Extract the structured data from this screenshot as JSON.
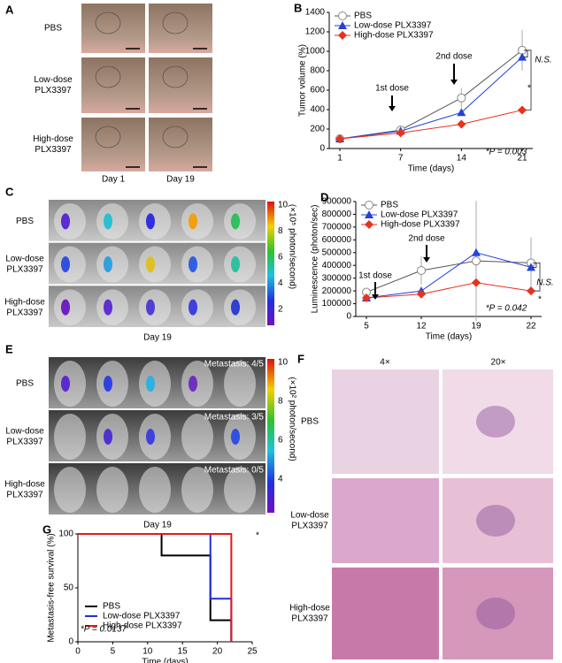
{
  "panels": {
    "A": {
      "label": "A",
      "rows": [
        [
          "PBS"
        ],
        [
          "Low-dose",
          "PLX3397"
        ],
        [
          "High-dose",
          "PLX3397"
        ]
      ],
      "columns": [
        "Day 1",
        "Day 19"
      ]
    },
    "C": {
      "label": "C",
      "rows": [
        [
          "PBS"
        ],
        [
          "Low-dose",
          "PLX3397"
        ],
        [
          "High-dose",
          "PLX3397"
        ]
      ],
      "colorbar_ticks": [
        10,
        8,
        6,
        4,
        2
      ],
      "colorbar_unit": "(×10⁵ photon/second)",
      "caption": "Day 19"
    },
    "E": {
      "label": "E",
      "rows": [
        [
          "PBS"
        ],
        [
          "Low-dose",
          "PLX3397"
        ],
        [
          "High-dose",
          "PLX3397"
        ]
      ],
      "colorbar_ticks": [
        10,
        8,
        6,
        4
      ],
      "colorbar_unit": "(×10² photon/second)",
      "metastasis": [
        "Metastasis: 4/5",
        "Metastasis: 3/5",
        "Metastasis: 0/5"
      ],
      "caption": "Day 19"
    },
    "F": {
      "label": "F",
      "rows": [
        [
          "PBS"
        ],
        [
          "Low-dose",
          "PLX3397"
        ],
        [
          "High-dose",
          "PLX3397"
        ]
      ],
      "columns": [
        "4×",
        "20×"
      ]
    }
  },
  "chart_data": [
    {
      "type": "line",
      "panel_label": "B",
      "ylabel": "Tumor volume (%)",
      "xlabel": "Time (days)",
      "categories": [
        "1",
        "7",
        "14",
        "21"
      ],
      "ylim": [
        0,
        1400
      ],
      "yticks": [
        0,
        200,
        400,
        600,
        800,
        1000,
        1200,
        1400
      ],
      "legend": "upper left",
      "series": [
        {
          "name": "PBS",
          "color": "#555555",
          "marker": "circle",
          "values": [
            100,
            190,
            520,
            1010
          ],
          "errors": [
            10,
            20,
            100,
            210
          ]
        },
        {
          "name": "Low-dose PLX3397",
          "color": "#2442d6",
          "marker": "triangle",
          "values": [
            100,
            180,
            370,
            940
          ]
        },
        {
          "name": "High-dose PLX3397",
          "color": "#e8321e",
          "marker": "diamond",
          "values": [
            100,
            160,
            250,
            395
          ]
        }
      ],
      "annotations": [
        "1st dose",
        "2nd dose",
        "N.S.",
        "*",
        "*P = 0.003"
      ]
    },
    {
      "type": "line",
      "panel_label": "D",
      "ylabel": "Luminescence (photon/sec)",
      "xlabel": "Time (days)",
      "categories": [
        "5",
        "12",
        "19",
        "22"
      ],
      "ylim": [
        0,
        900000
      ],
      "yticks": [
        0,
        100000,
        200000,
        300000,
        400000,
        500000,
        600000,
        700000,
        800000,
        900000
      ],
      "legend": "upper left",
      "series": [
        {
          "name": "PBS",
          "color": "#555555",
          "marker": "circle",
          "values": [
            190000,
            360000,
            435000,
            420000
          ],
          "errors": [
            20000,
            110000,
            470000,
            200000
          ]
        },
        {
          "name": "Low-dose PLX3397",
          "color": "#2442d6",
          "marker": "triangle",
          "values": [
            145000,
            200000,
            500000,
            385000
          ]
        },
        {
          "name": "High-dose PLX3397",
          "color": "#e8321e",
          "marker": "diamond",
          "values": [
            145000,
            175000,
            265000,
            200000
          ]
        }
      ],
      "annotations": [
        "1st dose",
        "2nd dose",
        "N.S.",
        "*",
        "*P = 0.042"
      ]
    },
    {
      "type": "step",
      "panel_label": "G",
      "ylabel": "Metastasis-free survival (%)",
      "xlabel": "Time (days)",
      "xlim": [
        0,
        25
      ],
      "xticks": [
        0,
        5,
        10,
        15,
        20,
        25
      ],
      "ylim": [
        0,
        100
      ],
      "yticks": [
        0,
        50,
        100
      ],
      "legend": "lower left",
      "series": [
        {
          "name": "PBS",
          "color": "#000000",
          "x": [
            0,
            12,
            12,
            19,
            19,
            22,
            22
          ],
          "values": [
            100,
            100,
            80,
            80,
            20,
            20,
            0
          ]
        },
        {
          "name": "Low-dose PLX3397",
          "color": "#1f2fd8",
          "x": [
            0,
            19,
            19,
            22,
            22
          ],
          "values": [
            100,
            100,
            40,
            40,
            0
          ]
        },
        {
          "name": "High-dose PLX3397",
          "color": "#e81818",
          "x": [
            0,
            22,
            22
          ],
          "values": [
            100,
            100,
            0
          ]
        }
      ],
      "annotations": [
        "*P = 0.0137",
        "*"
      ]
    }
  ]
}
